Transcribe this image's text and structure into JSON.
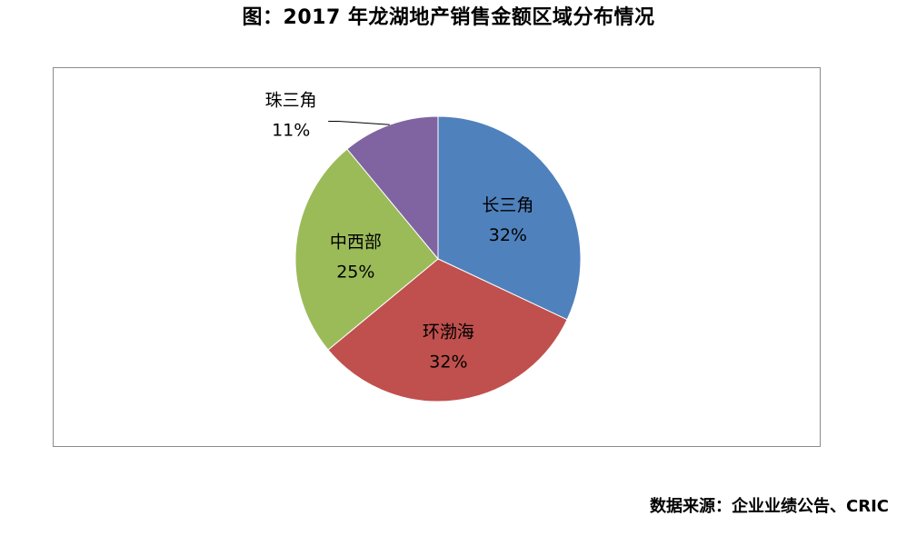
{
  "title": "图：2017 年龙湖地产销售金额区域分布情况",
  "source": "数据来源：企业业绩公告、CRIC",
  "chart_data": {
    "type": "pie",
    "title": "图：2017 年龙湖地产销售金额区域分布情况",
    "start_angle_deg": 0,
    "direction": "clockwise",
    "slices": [
      {
        "label": "长三角",
        "value": 32,
        "value_label": "32%",
        "color": "#4F81BD"
      },
      {
        "label": "环渤海",
        "value": 32,
        "value_label": "32%",
        "color": "#C0504D"
      },
      {
        "label": "中西部",
        "value": 25,
        "value_label": "25%",
        "color": "#9BBB59"
      },
      {
        "label": "珠三角",
        "value": 11,
        "value_label": "11%",
        "color": "#8064A2"
      }
    ],
    "legend": "none"
  }
}
